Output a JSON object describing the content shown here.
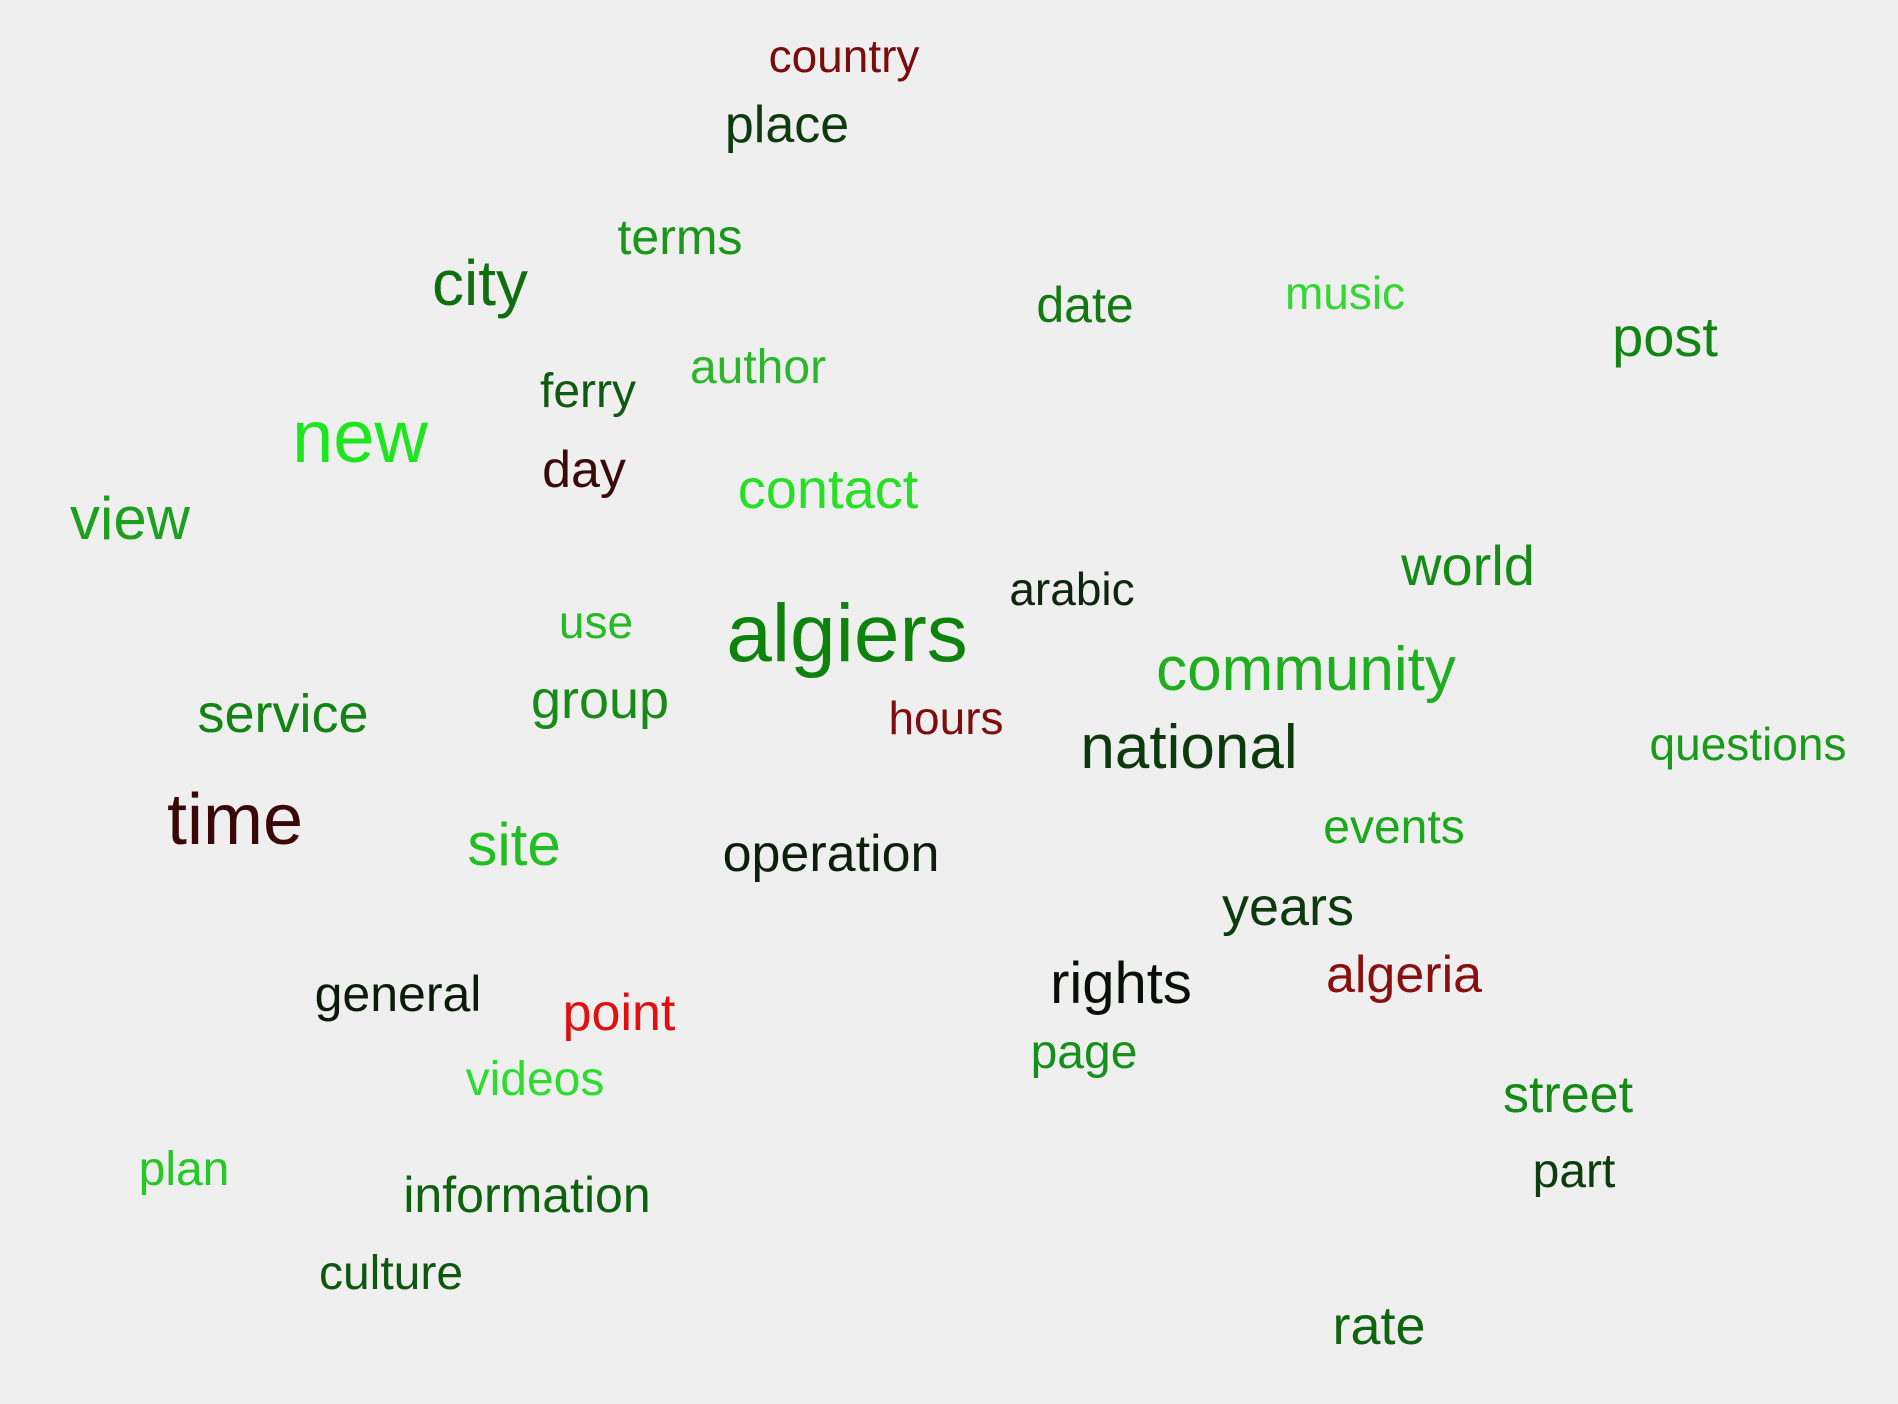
{
  "words": [
    {
      "text": "country",
      "color": "#7a0c0c"
    },
    {
      "text": "place",
      "color": "#0e3a0e"
    },
    {
      "text": "terms",
      "color": "#1a961a"
    },
    {
      "text": "city",
      "color": "#0f6e0f"
    },
    {
      "text": "date",
      "color": "#137a13"
    },
    {
      "text": "music",
      "color": "#33d633"
    },
    {
      "text": "post",
      "color": "#128412"
    },
    {
      "text": "author",
      "color": "#2ab82a"
    },
    {
      "text": "ferry",
      "color": "#0f5a0f"
    },
    {
      "text": "new",
      "color": "#1ee61e"
    },
    {
      "text": "day",
      "color": "#3a0b0b"
    },
    {
      "text": "contact",
      "color": "#26e026"
    },
    {
      "text": "view",
      "color": "#1ea01e"
    },
    {
      "text": "arabic",
      "color": "#0e260e"
    },
    {
      "text": "world",
      "color": "#168c16"
    },
    {
      "text": "use",
      "color": "#27ba27"
    },
    {
      "text": "algiers",
      "color": "#0d820d"
    },
    {
      "text": "community",
      "color": "#1fae1f"
    },
    {
      "text": "group",
      "color": "#178a17"
    },
    {
      "text": "service",
      "color": "#148214"
    },
    {
      "text": "hours",
      "color": "#7e0e0e"
    },
    {
      "text": "national",
      "color": "#0d3a0d"
    },
    {
      "text": "questions",
      "color": "#1a9a1a"
    },
    {
      "text": "time",
      "color": "#3a0808"
    },
    {
      "text": "site",
      "color": "#22be22"
    },
    {
      "text": "operation",
      "color": "#0d1e0d"
    },
    {
      "text": "events",
      "color": "#1ca81c"
    },
    {
      "text": "years",
      "color": "#0d3a0d"
    },
    {
      "text": "general",
      "color": "#0b1a0b"
    },
    {
      "text": "point",
      "color": "#de1010"
    },
    {
      "text": "rights",
      "color": "#080e08"
    },
    {
      "text": "algeria",
      "color": "#8a0f0f"
    },
    {
      "text": "page",
      "color": "#15901a"
    },
    {
      "text": "videos",
      "color": "#2edc2e"
    },
    {
      "text": "street",
      "color": "#158a15"
    },
    {
      "text": "plan",
      "color": "#26c826"
    },
    {
      "text": "information",
      "color": "#0e620e"
    },
    {
      "text": "part",
      "color": "#0d3c0d"
    },
    {
      "text": "culture",
      "color": "#0f560f"
    },
    {
      "text": "rate",
      "color": "#0f640f"
    }
  ]
}
